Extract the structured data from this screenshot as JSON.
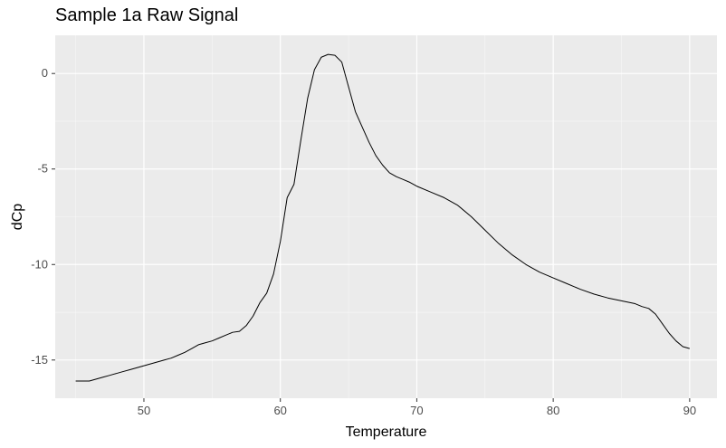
{
  "chart_data": {
    "type": "line",
    "title": "Sample 1a Raw Signal",
    "xlabel": "Temperature",
    "ylabel": "dCp",
    "xlim": [
      43.5,
      92
    ],
    "ylim": [
      -17,
      2
    ],
    "x_ticks": [
      50,
      60,
      70,
      80,
      90
    ],
    "x_tick_labels": [
      "50",
      "60",
      "70",
      "80",
      "90"
    ],
    "y_ticks": [
      0,
      -5,
      -10,
      -15
    ],
    "y_tick_labels": [
      "0",
      "-5",
      "-10",
      "-15"
    ],
    "grid": true,
    "legend": "none",
    "series": [
      {
        "x": [
          45.0,
          45.5,
          46.0,
          46.5,
          47.0,
          47.5,
          48.0,
          48.5,
          49.0,
          49.5,
          50.0,
          50.5,
          51.0,
          51.5,
          52.0,
          52.5,
          53.0,
          53.5,
          54.0,
          54.5,
          55.0,
          55.5,
          56.0,
          56.5,
          57.0,
          57.5,
          58.0,
          58.5,
          59.0,
          59.5,
          60.0,
          60.5,
          61.0,
          61.5,
          62.0,
          62.5,
          63.0,
          63.5,
          64.0,
          64.5,
          65.0,
          65.5,
          66.0,
          66.5,
          67.0,
          67.5,
          68.0,
          68.5,
          69.0,
          69.5,
          70.0,
          71.0,
          72.0,
          73.0,
          74.0,
          75.0,
          76.0,
          77.0,
          78.0,
          79.0,
          80.0,
          81.0,
          82.0,
          83.0,
          84.0,
          85.0,
          86.0,
          86.5,
          87.0,
          87.5,
          88.0,
          88.5,
          89.0,
          89.5,
          90.0
        ],
        "values": [
          -16.1,
          -16.1,
          -16.1,
          -16.0,
          -15.9,
          -15.8,
          -15.7,
          -15.6,
          -15.5,
          -15.4,
          -15.3,
          -15.2,
          -15.1,
          -15.0,
          -14.9,
          -14.75,
          -14.6,
          -14.4,
          -14.2,
          -14.1,
          -14.0,
          -13.85,
          -13.7,
          -13.55,
          -13.5,
          -13.2,
          -12.7,
          -12.0,
          -11.5,
          -10.5,
          -8.8,
          -6.5,
          -5.8,
          -3.5,
          -1.3,
          0.2,
          0.85,
          1.0,
          0.95,
          0.6,
          -0.7,
          -2.0,
          -2.8,
          -3.6,
          -4.3,
          -4.8,
          -5.2,
          -5.4,
          -5.55,
          -5.7,
          -5.9,
          -6.2,
          -6.5,
          -6.9,
          -7.5,
          -8.2,
          -8.9,
          -9.5,
          -10.0,
          -10.4,
          -10.7,
          -11.0,
          -11.3,
          -11.55,
          -11.75,
          -11.9,
          -12.05,
          -12.2,
          -12.3,
          -12.6,
          -13.1,
          -13.6,
          -14.0,
          -14.3,
          -14.4
        ]
      }
    ]
  }
}
